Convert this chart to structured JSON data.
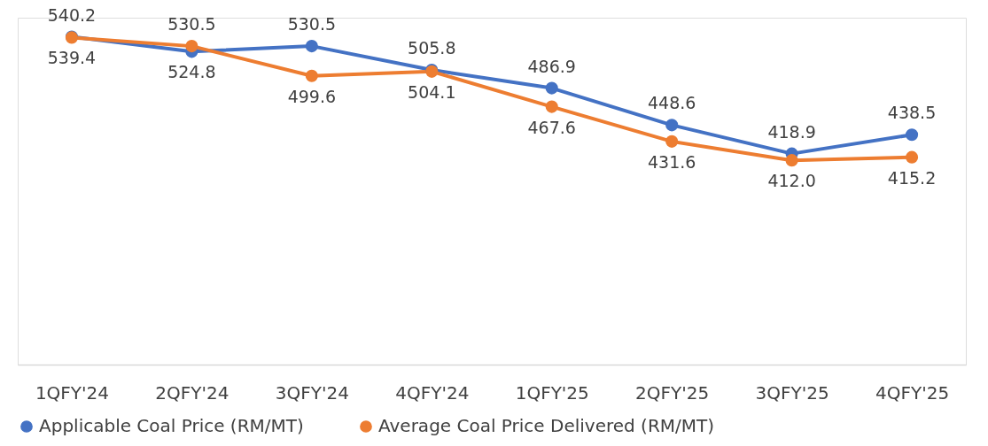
{
  "chart_data": {
    "type": "line",
    "categories": [
      "1QFY'24",
      "2QFY'24",
      "3QFY'24",
      "4QFY'24",
      "1QFY'25",
      "2QFY'25",
      "3QFY'25",
      "4QFY'25"
    ],
    "series": [
      {
        "name": "Applicable Coal Price (RM/MT)",
        "color": "#4472c4",
        "values": [
          540.2,
          524.8,
          530.5,
          505.8,
          486.9,
          448.6,
          418.9,
          438.5
        ],
        "value_labels": [
          "540.2",
          "524.8",
          "530.5",
          "505.8",
          "486.9",
          "448.6",
          "418.9",
          "438.5"
        ]
      },
      {
        "name": "Average Coal Price Delivered (RM/MT)",
        "color": "#ed7d31",
        "values": [
          539.4,
          530.5,
          499.6,
          504.1,
          467.6,
          431.6,
          412.0,
          415.2
        ],
        "value_labels": [
          "539.4",
          "530.5",
          "499.6",
          "504.1",
          "467.6",
          "431.6",
          "412.0",
          "415.2"
        ]
      }
    ],
    "ylim": [
      200,
      560
    ],
    "tick_labels": "x",
    "grid": false,
    "legend": "bottom",
    "marker": "circle",
    "line_style": "solid"
  }
}
